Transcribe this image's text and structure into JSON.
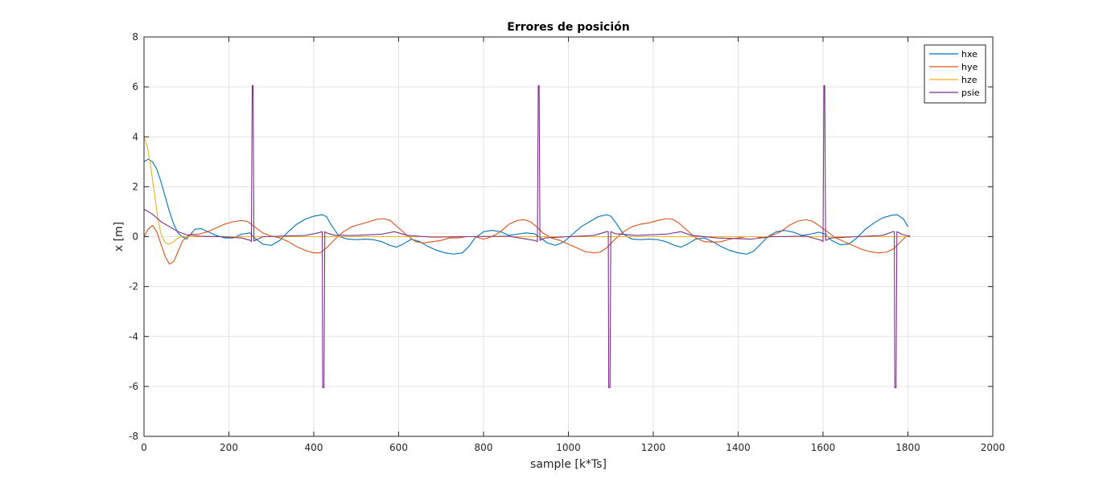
{
  "chart_data": {
    "type": "line",
    "title": "Errores de posición",
    "xlabel": "sample [k*Ts]",
    "ylabel": "x [m]",
    "xlim": [
      0,
      2000
    ],
    "ylim": [
      -8,
      8
    ],
    "xticks": [
      0,
      200,
      400,
      600,
      800,
      1000,
      1200,
      1400,
      1600,
      1800,
      2000
    ],
    "yticks": [
      -8,
      -6,
      -4,
      -2,
      0,
      2,
      4,
      6,
      8
    ],
    "xtick_labels": [
      "0",
      "200",
      "400",
      "600",
      "800",
      "1000",
      "1200",
      "1400",
      "1600",
      "1800",
      "2000"
    ],
    "ytick_labels": [
      "-8",
      "-6",
      "-4",
      "-2",
      "0",
      "2",
      "4",
      "6",
      "8"
    ],
    "grid": true,
    "legend_position": "top-right",
    "series": [
      {
        "name": "hxe",
        "color": "#0072BD",
        "points": [
          [
            0,
            3.0
          ],
          [
            10,
            3.1
          ],
          [
            20,
            3.0
          ],
          [
            30,
            2.7
          ],
          [
            40,
            2.2
          ],
          [
            50,
            1.6
          ],
          [
            60,
            1.0
          ],
          [
            70,
            0.5
          ],
          [
            80,
            0.15
          ],
          [
            90,
            0.0
          ],
          [
            100,
            -0.1
          ],
          [
            110,
            0.1
          ],
          [
            120,
            0.3
          ],
          [
            135,
            0.32
          ],
          [
            150,
            0.2
          ],
          [
            170,
            0.05
          ],
          [
            190,
            -0.05
          ],
          [
            210,
            -0.05
          ],
          [
            230,
            0.1
          ],
          [
            250,
            0.15
          ],
          [
            260,
            -0.05
          ],
          [
            280,
            -0.3
          ],
          [
            300,
            -0.35
          ],
          [
            320,
            -0.15
          ],
          [
            340,
            0.2
          ],
          [
            360,
            0.5
          ],
          [
            380,
            0.7
          ],
          [
            400,
            0.82
          ],
          [
            420,
            0.88
          ],
          [
            430,
            0.8
          ],
          [
            440,
            0.5
          ],
          [
            460,
            0.0
          ],
          [
            480,
            -0.1
          ],
          [
            500,
            -0.12
          ],
          [
            520,
            -0.1
          ],
          [
            540,
            -0.12
          ],
          [
            560,
            -0.2
          ],
          [
            580,
            -0.35
          ],
          [
            595,
            -0.42
          ],
          [
            610,
            -0.3
          ],
          [
            630,
            -0.1
          ],
          [
            650,
            -0.2
          ],
          [
            670,
            -0.4
          ],
          [
            690,
            -0.55
          ],
          [
            710,
            -0.65
          ],
          [
            730,
            -0.7
          ],
          [
            750,
            -0.65
          ],
          [
            765,
            -0.4
          ],
          [
            780,
            -0.05
          ],
          [
            800,
            0.2
          ],
          [
            820,
            0.25
          ],
          [
            840,
            0.2
          ],
          [
            860,
            0.05
          ],
          [
            880,
            0.1
          ],
          [
            900,
            0.15
          ],
          [
            920,
            0.12
          ],
          [
            935,
            -0.05
          ],
          [
            950,
            -0.25
          ],
          [
            970,
            -0.35
          ],
          [
            990,
            -0.2
          ],
          [
            1010,
            0.1
          ],
          [
            1030,
            0.4
          ],
          [
            1050,
            0.6
          ],
          [
            1070,
            0.8
          ],
          [
            1090,
            0.88
          ],
          [
            1100,
            0.82
          ],
          [
            1110,
            0.6
          ],
          [
            1130,
            0.1
          ],
          [
            1150,
            -0.1
          ],
          [
            1170,
            -0.12
          ],
          [
            1190,
            -0.1
          ],
          [
            1210,
            -0.12
          ],
          [
            1230,
            -0.2
          ],
          [
            1250,
            -0.35
          ],
          [
            1265,
            -0.42
          ],
          [
            1280,
            -0.3
          ],
          [
            1300,
            -0.1
          ],
          [
            1320,
            -0.05
          ],
          [
            1340,
            -0.2
          ],
          [
            1360,
            -0.4
          ],
          [
            1380,
            -0.55
          ],
          [
            1400,
            -0.65
          ],
          [
            1420,
            -0.7
          ],
          [
            1435,
            -0.6
          ],
          [
            1450,
            -0.35
          ],
          [
            1470,
            0.0
          ],
          [
            1490,
            0.2
          ],
          [
            1510,
            0.25
          ],
          [
            1530,
            0.18
          ],
          [
            1550,
            0.05
          ],
          [
            1570,
            0.1
          ],
          [
            1590,
            0.18
          ],
          [
            1605,
            0.1
          ],
          [
            1620,
            -0.15
          ],
          [
            1640,
            -0.32
          ],
          [
            1660,
            -0.3
          ],
          [
            1680,
            -0.05
          ],
          [
            1700,
            0.3
          ],
          [
            1720,
            0.55
          ],
          [
            1740,
            0.75
          ],
          [
            1760,
            0.85
          ],
          [
            1775,
            0.88
          ],
          [
            1790,
            0.7
          ],
          [
            1800,
            0.4
          ]
        ]
      },
      {
        "name": "hye",
        "color": "#D95319",
        "points": [
          [
            0,
            0.0
          ],
          [
            10,
            0.3
          ],
          [
            20,
            0.45
          ],
          [
            30,
            0.2
          ],
          [
            40,
            -0.3
          ],
          [
            50,
            -0.8
          ],
          [
            60,
            -1.1
          ],
          [
            70,
            -1.0
          ],
          [
            80,
            -0.6
          ],
          [
            90,
            -0.2
          ],
          [
            100,
            0.0
          ],
          [
            110,
            0.1
          ],
          [
            130,
            0.1
          ],
          [
            150,
            0.2
          ],
          [
            170,
            0.35
          ],
          [
            190,
            0.5
          ],
          [
            210,
            0.6
          ],
          [
            230,
            0.65
          ],
          [
            245,
            0.6
          ],
          [
            260,
            0.4
          ],
          [
            280,
            0.15
          ],
          [
            300,
            0.02
          ],
          [
            320,
            -0.05
          ],
          [
            340,
            -0.2
          ],
          [
            360,
            -0.4
          ],
          [
            380,
            -0.55
          ],
          [
            400,
            -0.65
          ],
          [
            415,
            -0.65
          ],
          [
            430,
            -0.45
          ],
          [
            450,
            -0.1
          ],
          [
            470,
            0.2
          ],
          [
            490,
            0.4
          ],
          [
            510,
            0.5
          ],
          [
            530,
            0.6
          ],
          [
            550,
            0.7
          ],
          [
            565,
            0.72
          ],
          [
            580,
            0.65
          ],
          [
            600,
            0.35
          ],
          [
            620,
            0.05
          ],
          [
            640,
            -0.2
          ],
          [
            660,
            -0.25
          ],
          [
            680,
            -0.2
          ],
          [
            700,
            -0.15
          ],
          [
            720,
            -0.05
          ],
          [
            740,
            -0.05
          ],
          [
            760,
            0.0
          ],
          [
            780,
            0.0
          ],
          [
            800,
            -0.1
          ],
          [
            820,
            0.0
          ],
          [
            840,
            0.2
          ],
          [
            860,
            0.5
          ],
          [
            880,
            0.65
          ],
          [
            895,
            0.68
          ],
          [
            910,
            0.6
          ],
          [
            925,
            0.4
          ],
          [
            940,
            0.15
          ],
          [
            960,
            -0.05
          ],
          [
            980,
            -0.15
          ],
          [
            1000,
            -0.3
          ],
          [
            1020,
            -0.45
          ],
          [
            1040,
            -0.6
          ],
          [
            1060,
            -0.65
          ],
          [
            1075,
            -0.62
          ],
          [
            1090,
            -0.45
          ],
          [
            1110,
            -0.1
          ],
          [
            1130,
            0.2
          ],
          [
            1150,
            0.4
          ],
          [
            1170,
            0.5
          ],
          [
            1190,
            0.55
          ],
          [
            1210,
            0.65
          ],
          [
            1230,
            0.72
          ],
          [
            1245,
            0.7
          ],
          [
            1260,
            0.55
          ],
          [
            1280,
            0.25
          ],
          [
            1300,
            -0.05
          ],
          [
            1320,
            -0.2
          ],
          [
            1340,
            -0.22
          ],
          [
            1360,
            -0.2
          ],
          [
            1380,
            -0.1
          ],
          [
            1400,
            -0.05
          ],
          [
            1420,
            0.0
          ],
          [
            1440,
            0.0
          ],
          [
            1460,
            -0.05
          ],
          [
            1480,
            0.05
          ],
          [
            1500,
            0.2
          ],
          [
            1520,
            0.45
          ],
          [
            1540,
            0.62
          ],
          [
            1560,
            0.68
          ],
          [
            1575,
            0.62
          ],
          [
            1590,
            0.45
          ],
          [
            1610,
            0.2
          ],
          [
            1630,
            -0.05
          ],
          [
            1650,
            -0.2
          ],
          [
            1670,
            -0.35
          ],
          [
            1690,
            -0.5
          ],
          [
            1710,
            -0.6
          ],
          [
            1730,
            -0.65
          ],
          [
            1750,
            -0.62
          ],
          [
            1765,
            -0.5
          ],
          [
            1780,
            -0.25
          ],
          [
            1795,
            0.0
          ],
          [
            1805,
            0.05
          ]
        ]
      },
      {
        "name": "hze",
        "color": "#EDB120",
        "points": [
          [
            0,
            4.0
          ],
          [
            8,
            3.6
          ],
          [
            16,
            2.8
          ],
          [
            24,
            1.8
          ],
          [
            32,
            0.8
          ],
          [
            40,
            0.1
          ],
          [
            50,
            -0.25
          ],
          [
            60,
            -0.3
          ],
          [
            70,
            -0.2
          ],
          [
            80,
            -0.05
          ],
          [
            90,
            0.02
          ],
          [
            100,
            0.0
          ],
          [
            150,
            0.0
          ],
          [
            300,
            0.0
          ],
          [
            600,
            0.0
          ],
          [
            900,
            0.0
          ],
          [
            1200,
            0.0
          ],
          [
            1500,
            0.0
          ],
          [
            1805,
            0.0
          ]
        ]
      },
      {
        "name": "psie",
        "color": "#7E2F8E",
        "points": [
          [
            0,
            1.1
          ],
          [
            20,
            0.9
          ],
          [
            40,
            0.6
          ],
          [
            60,
            0.4
          ],
          [
            80,
            0.2
          ],
          [
            100,
            0.08
          ],
          [
            130,
            0.02
          ],
          [
            180,
            0.0
          ],
          [
            230,
            -0.05
          ],
          [
            251,
            -0.15
          ],
          [
            253,
            -0.2
          ],
          [
            255,
            6.05
          ],
          [
            257,
            6.05
          ],
          [
            259,
            -0.18
          ],
          [
            262,
            -0.15
          ],
          [
            280,
            0.0
          ],
          [
            320,
            0.02
          ],
          [
            380,
            0.05
          ],
          [
            410,
            0.15
          ],
          [
            420,
            0.2
          ],
          [
            421,
            -6.05
          ],
          [
            424,
            -6.05
          ],
          [
            426,
            0.2
          ],
          [
            430,
            0.15
          ],
          [
            450,
            0.05
          ],
          [
            500,
            0.05
          ],
          [
            560,
            0.1
          ],
          [
            590,
            0.2
          ],
          [
            620,
            0.05
          ],
          [
            680,
            -0.02
          ],
          [
            760,
            0.0
          ],
          [
            860,
            0.02
          ],
          [
            920,
            -0.15
          ],
          [
            927,
            -0.2
          ],
          [
            929,
            6.05
          ],
          [
            931,
            6.05
          ],
          [
            933,
            -0.15
          ],
          [
            945,
            -0.05
          ],
          [
            1000,
            0.0
          ],
          [
            1060,
            0.05
          ],
          [
            1090,
            0.2
          ],
          [
            1094,
            0.2
          ],
          [
            1095,
            -6.05
          ],
          [
            1098,
            -6.05
          ],
          [
            1100,
            0.2
          ],
          [
            1110,
            0.12
          ],
          [
            1160,
            0.05
          ],
          [
            1230,
            0.1
          ],
          [
            1265,
            0.2
          ],
          [
            1290,
            0.05
          ],
          [
            1350,
            -0.05
          ],
          [
            1430,
            -0.1
          ],
          [
            1480,
            0.0
          ],
          [
            1560,
            0.02
          ],
          [
            1597,
            -0.15
          ],
          [
            1600,
            -0.2
          ],
          [
            1602,
            6.05
          ],
          [
            1604,
            6.05
          ],
          [
            1606,
            -0.15
          ],
          [
            1620,
            -0.05
          ],
          [
            1680,
            0.0
          ],
          [
            1740,
            0.05
          ],
          [
            1765,
            0.2
          ],
          [
            1768,
            0.2
          ],
          [
            1769,
            -6.05
          ],
          [
            1772,
            -6.05
          ],
          [
            1774,
            0.2
          ],
          [
            1785,
            0.1
          ],
          [
            1805,
            0.0
          ]
        ]
      }
    ]
  }
}
